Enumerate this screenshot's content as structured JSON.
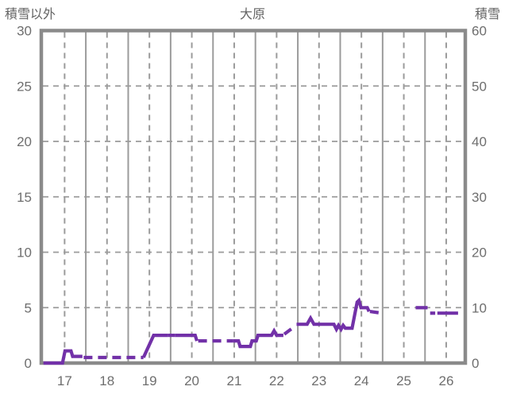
{
  "header": {
    "left_label": "積雪以外",
    "title": "大原",
    "right_label": "積雪"
  },
  "colors": {
    "series": "#7231a8",
    "border": "#8a8a8a",
    "grid": "#9b9b9b",
    "text": "#6e6e6e",
    "background": "#ffffff"
  },
  "chart_data": {
    "type": "line",
    "title": "大原",
    "x_axis": {
      "ticks": [
        17,
        18,
        19,
        20,
        21,
        22,
        23,
        24,
        25,
        26
      ],
      "range": [
        16.45,
        26.45
      ],
      "label": ""
    },
    "left_axis": {
      "label": "積雪以外",
      "ticks": [
        0,
        5,
        10,
        15,
        20,
        25,
        30
      ],
      "range": [
        0,
        30
      ]
    },
    "right_axis": {
      "label": "積雪",
      "ticks": [
        0,
        10,
        20,
        30,
        40,
        50,
        60
      ],
      "range": [
        0,
        60
      ]
    },
    "grid": {
      "vertical_dashed_days": [
        17,
        18,
        19,
        20,
        21,
        22,
        23,
        24,
        25,
        26
      ],
      "vertical_solid_days": [
        17.5,
        18.5,
        19.5,
        20.5,
        21.5,
        22.5,
        23.5,
        24.5,
        25.5
      ],
      "horizontal_dashed_right_values": [
        10,
        20,
        30,
        40,
        50
      ]
    },
    "series": [
      {
        "name": "積雪",
        "axis": "right",
        "color": "#7231a8",
        "segments": [
          {
            "style": "solid",
            "points": [
              [
                16.5,
                0
              ],
              [
                16.95,
                0
              ],
              [
                17.01,
                2.2
              ],
              [
                17.15,
                2.2
              ],
              [
                17.19,
                1.2
              ],
              [
                17.42,
                1.2
              ]
            ]
          },
          {
            "style": "dashed",
            "points": [
              [
                17.45,
                1.0
              ],
              [
                18.86,
                1.0
              ]
            ]
          },
          {
            "style": "solid",
            "points": [
              [
                18.86,
                1.0
              ],
              [
                19.1,
                5.0
              ],
              [
                19.43,
                5.0
              ]
            ]
          },
          {
            "style": "dashed",
            "points": [
              [
                19.43,
                5.0
              ],
              [
                19.6,
                5.0
              ]
            ]
          },
          {
            "style": "solid",
            "points": [
              [
                19.6,
                5.0
              ],
              [
                20.08,
                5.0
              ],
              [
                20.12,
                4.0
              ]
            ]
          },
          {
            "style": "dashed",
            "points": [
              [
                20.15,
                4.0
              ],
              [
                20.97,
                4.0
              ]
            ]
          },
          {
            "style": "solid",
            "points": [
              [
                20.97,
                4.0
              ],
              [
                21.1,
                4.0
              ],
              [
                21.14,
                3.0
              ],
              [
                21.38,
                3.0
              ],
              [
                21.42,
                4.0
              ],
              [
                21.52,
                4.0
              ],
              [
                21.56,
                5.0
              ],
              [
                21.88,
                5.0
              ],
              [
                21.94,
                5.8
              ],
              [
                22.0,
                5.0
              ],
              [
                22.16,
                5.0
              ]
            ]
          },
          {
            "style": "dashed",
            "points": [
              [
                22.18,
                5.2
              ],
              [
                22.32,
                6.0
              ],
              [
                22.44,
                6.6
              ]
            ]
          },
          {
            "style": "solid",
            "points": [
              [
                22.47,
                7.0
              ],
              [
                22.72,
                7.0
              ],
              [
                22.8,
                8.1
              ],
              [
                22.88,
                7.0
              ],
              [
                23.35,
                7.0
              ],
              [
                23.41,
                6.1
              ],
              [
                23.46,
                6.8
              ],
              [
                23.52,
                6.1
              ],
              [
                23.57,
                6.8
              ],
              [
                23.62,
                6.3
              ],
              [
                23.78,
                6.3
              ],
              [
                23.9,
                11.0
              ],
              [
                23.94,
                11.3
              ],
              [
                23.99,
                10.0
              ],
              [
                24.14,
                10.0
              ],
              [
                24.18,
                9.3
              ]
            ]
          },
          {
            "style": "dashed",
            "points": [
              [
                24.2,
                9.3
              ],
              [
                24.48,
                9.0
              ]
            ]
          },
          {
            "style": "solid",
            "points": [
              [
                25.28,
                10.0
              ],
              [
                25.56,
                10.0
              ]
            ]
          },
          {
            "style": "dashed",
            "points": [
              [
                25.62,
                9.0
              ],
              [
                25.74,
                9.0
              ]
            ]
          },
          {
            "style": "solid",
            "points": [
              [
                25.79,
                9.0
              ],
              [
                26.28,
                9.0
              ]
            ]
          }
        ]
      }
    ]
  }
}
